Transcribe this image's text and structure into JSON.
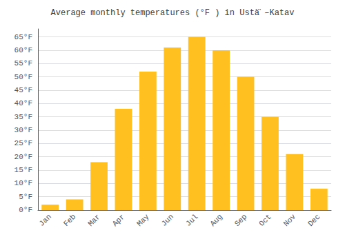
{
  "chart_data": {
    "type": "bar",
    "title": "Average monthly temperatures (°F ) in Ustà̈ –Katav",
    "categories": [
      "Jan",
      "Feb",
      "Mar",
      "Apr",
      "May",
      "Jun",
      "Jul",
      "Aug",
      "Sep",
      "Oct",
      "Nov",
      "Dec"
    ],
    "values": [
      2,
      4,
      18,
      38,
      52,
      61,
      65,
      60,
      50,
      35,
      21,
      8
    ],
    "color": "#FFC020",
    "ylim": [
      0,
      68
    ],
    "yticks": [
      {
        "value": 0,
        "label": "0°F"
      },
      {
        "value": 5,
        "label": "5°F"
      },
      {
        "value": 10,
        "label": "10°F"
      },
      {
        "value": 15,
        "label": "15°F"
      },
      {
        "value": 20,
        "label": "20°F"
      },
      {
        "value": 25,
        "label": "25°F"
      },
      {
        "value": 30,
        "label": "30°F"
      },
      {
        "value": 35,
        "label": "35°F"
      },
      {
        "value": 40,
        "label": "40°F"
      },
      {
        "value": 45,
        "label": "45°F"
      },
      {
        "value": 50,
        "label": "50°F"
      },
      {
        "value": 55,
        "label": "55°F"
      },
      {
        "value": 60,
        "label": "60°F"
      },
      {
        "value": 65,
        "label": "65°F"
      }
    ],
    "grid": true
  }
}
